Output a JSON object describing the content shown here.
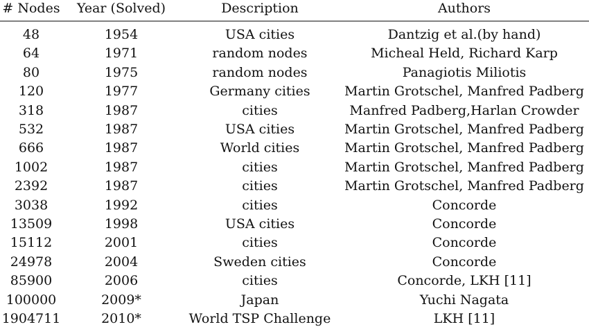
{
  "headers": [
    "# Nodes",
    "Year (Solved)",
    "Description",
    "Authors"
  ],
  "rows": [
    [
      "48",
      "1954",
      "USA cities",
      "Dantzig et al.(by hand)"
    ],
    [
      "64",
      "1971",
      "random nodes",
      "Micheal Held, Richard Karp"
    ],
    [
      "80",
      "1975",
      "random nodes",
      "Panagiotis Miliotis"
    ],
    [
      "120",
      "1977",
      "Germany cities",
      "Martin Grotschel, Manfred Padberg"
    ],
    [
      "318",
      "1987",
      "cities",
      "Manfred Padberg,Harlan Crowder"
    ],
    [
      "532",
      "1987",
      "USA cities",
      "Martin Grotschel, Manfred Padberg"
    ],
    [
      "666",
      "1987",
      "World cities",
      "Martin Grotschel, Manfred Padberg"
    ],
    [
      "1002",
      "1987",
      "cities",
      "Martin Grotschel, Manfred Padberg"
    ],
    [
      "2392",
      "1987",
      "cities",
      "Martin Grotschel, Manfred Padberg"
    ],
    [
      "3038",
      "1992",
      "cities",
      "Concorde"
    ],
    [
      "13509",
      "1998",
      "USA cities",
      "Concorde"
    ],
    [
      "15112",
      "2001",
      "cities",
      "Concorde"
    ],
    [
      "24978",
      "2004",
      "Sweden cities",
      "Concorde"
    ],
    [
      "85900",
      "2006",
      "cities",
      "Concorde, LKH [11]"
    ],
    [
      "100000",
      "2009*",
      "Japan",
      "Yuchi Nagata"
    ],
    [
      "1904711",
      "2010*",
      "World TSP Challenge",
      "LKH [11]"
    ]
  ]
}
